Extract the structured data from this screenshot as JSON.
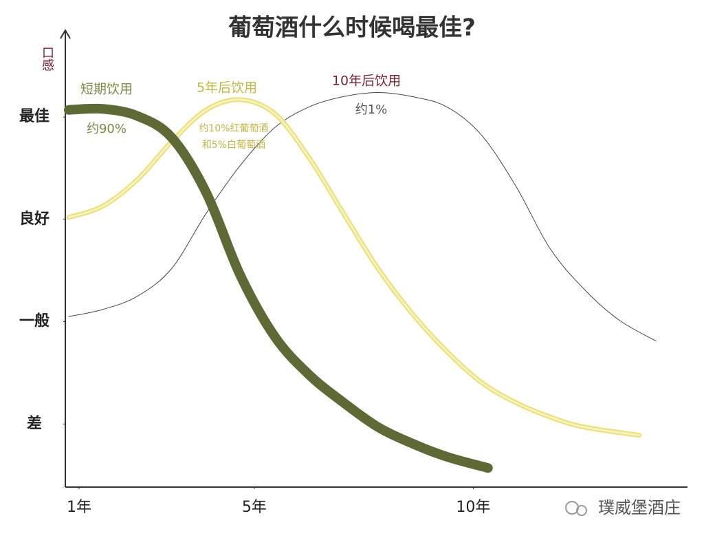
{
  "chart_data": {
    "type": "line",
    "title": "葡萄酒什么时候喝最佳?",
    "y_label": "口感",
    "watermark": "璞威堡酒庄",
    "xlim": [
      1,
      15
    ],
    "ylim": [
      0.4,
      4.8
    ],
    "xticks": [
      {
        "value": 1,
        "label": "1年"
      },
      {
        "value": 5,
        "label": "5年"
      },
      {
        "value": 10,
        "label": "10年"
      }
    ],
    "yticks": [
      {
        "value": 1,
        "label": "差"
      },
      {
        "value": 2,
        "label": "一般"
      },
      {
        "value": 3,
        "label": "良好"
      },
      {
        "value": 4,
        "label": "最佳"
      }
    ],
    "series": [
      {
        "name": "短期饮用",
        "color": "#5d6a36",
        "label_color": "#7b8a45",
        "width": 14,
        "notes": [
          "约90%"
        ],
        "x": [
          1,
          1.78,
          2.57,
          3.35,
          4.14,
          4.92,
          5.71,
          6.49,
          7.27,
          8.06,
          8.84,
          9.63,
          10.57
        ],
        "values": [
          4.07,
          4.08,
          4.01,
          3.8,
          3.26,
          2.45,
          1.85,
          1.48,
          1.21,
          0.97,
          0.81,
          0.68,
          0.57
        ]
      },
      {
        "name": "5年后饮用",
        "color": "#e9e07a",
        "label_color": "#c4b640",
        "width": 7,
        "notes": [
          "约10%红葡萄酒",
          "和5%白葡萄酒"
        ],
        "x": [
          1,
          1.78,
          2.57,
          3.35,
          4.14,
          4.92,
          5.71,
          6.49,
          7.27,
          8.06,
          8.84,
          9.63,
          10.41,
          11.2,
          11.98,
          12.76,
          14.02
        ],
        "values": [
          3.02,
          3.13,
          3.39,
          3.76,
          4.07,
          4.17,
          4.03,
          3.6,
          3.06,
          2.52,
          2.08,
          1.71,
          1.41,
          1.21,
          1.07,
          0.97,
          0.89
        ]
      },
      {
        "name": "10年后饮用",
        "color": "#444444",
        "label_color": "#7a1f2f",
        "width": 1,
        "notes": [
          "约1%"
        ],
        "x": [
          1,
          1.78,
          2.57,
          3.35,
          4.14,
          4.92,
          5.71,
          6.49,
          7.27,
          8.06,
          8.84,
          9.63,
          10.41,
          11.2,
          11.98,
          12.76,
          13.55,
          14.41
        ],
        "values": [
          2.05,
          2.12,
          2.25,
          2.52,
          3.06,
          3.53,
          3.9,
          4.1,
          4.2,
          4.24,
          4.2,
          4.1,
          3.83,
          3.33,
          2.72,
          2.32,
          2.02,
          1.81
        ]
      }
    ]
  }
}
